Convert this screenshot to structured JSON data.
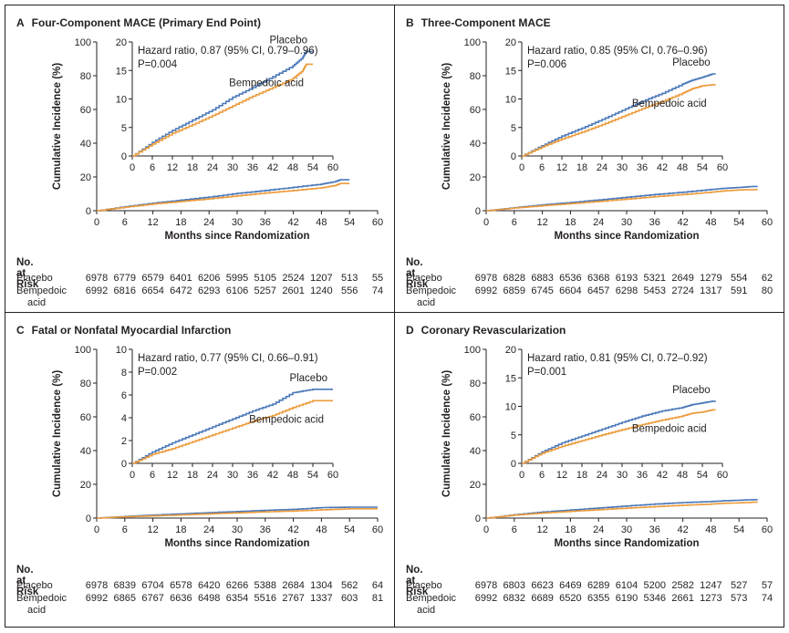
{
  "colors": {
    "placebo": "#4a78b9",
    "bempedoic": "#ec9b3b",
    "axis": "#231f20"
  },
  "panels": [
    {
      "letter": "A",
      "title": "Four-Component MACE (Primary End Point)",
      "hr": "Hazard ratio, 0.87 (95% CI, 0.79–0.96)",
      "p": "P=0.004",
      "risk_rows": {
        "placebo": [
          "6978",
          "6779",
          "6579",
          "6401",
          "6206",
          "5995",
          "5105",
          "2524",
          "1207",
          "513",
          "55"
        ],
        "bempedoic": [
          "6992",
          "6816",
          "6654",
          "6472",
          "6293",
          "6106",
          "5257",
          "2601",
          "1240",
          "556",
          "74"
        ]
      }
    },
    {
      "letter": "B",
      "title": "Three-Component MACE",
      "hr": "Hazard ratio, 0.85 (95% CI, 0.76–0.96)",
      "p": "P=0.006",
      "risk_rows": {
        "placebo": [
          "6978",
          "6828",
          "6883",
          "6536",
          "6368",
          "6193",
          "5321",
          "2649",
          "1279",
          "554",
          "62"
        ],
        "bempedoic": [
          "6992",
          "6859",
          "6745",
          "6604",
          "6457",
          "6298",
          "5453",
          "2724",
          "1317",
          "591",
          "80"
        ]
      }
    },
    {
      "letter": "C",
      "title": "Fatal or Nonfatal Myocardial Infarction",
      "hr": "Hazard ratio, 0.77 (95% CI, 0.66–0.91)",
      "p": "P=0.002",
      "risk_rows": {
        "placebo": [
          "6978",
          "6839",
          "6704",
          "6578",
          "6420",
          "6266",
          "5388",
          "2684",
          "1304",
          "562",
          "64"
        ],
        "bempedoic": [
          "6992",
          "6865",
          "6767",
          "6636",
          "6498",
          "6354",
          "5516",
          "2767",
          "1337",
          "603",
          "81"
        ]
      }
    },
    {
      "letter": "D",
      "title": "Coronary Revascularization",
      "hr": "Hazard ratio, 0.81 (95% CI, 0.72–0.92)",
      "p": "P=0.001",
      "risk_rows": {
        "placebo": [
          "6978",
          "6803",
          "6623",
          "6469",
          "6289",
          "6104",
          "5200",
          "2582",
          "1247",
          "527",
          "57"
        ],
        "bempedoic": [
          "6992",
          "6832",
          "6689",
          "6520",
          "6355",
          "6190",
          "5346",
          "2661",
          "1273",
          "573",
          "74"
        ]
      }
    }
  ],
  "labels": {
    "ylabel": "Cumulative Incidence (%)",
    "xlabel": "Months since Randomization",
    "risk_title": "No. at Risk",
    "placebo": "Placebo",
    "bempedoic_line1": "Bempedoic",
    "bempedoic_line2": "acid",
    "inset_placebo": "Placebo",
    "inset_bempedoic": "Bempedoic acid"
  },
  "chart_data": [
    {
      "type": "line",
      "title": "Four-Component MACE (Primary End Point)",
      "xlabel": "Months since Randomization",
      "ylabel": "Cumulative Incidence (%)",
      "xlim": [
        0,
        60
      ],
      "ylim": [
        0,
        100
      ],
      "xticks": [
        0,
        6,
        12,
        18,
        24,
        30,
        36,
        42,
        48,
        54,
        60
      ],
      "yticks": [
        0,
        20,
        40,
        60,
        80,
        100
      ],
      "inset": {
        "xlim": [
          0,
          60
        ],
        "ylim": [
          0,
          20
        ],
        "xticks": [
          0,
          6,
          12,
          18,
          24,
          30,
          36,
          42,
          48,
          54,
          60
        ],
        "yticks": [
          0,
          5,
          10,
          15,
          20
        ]
      },
      "series": [
        {
          "name": "Placebo",
          "x": [
            0,
            6,
            12,
            18,
            24,
            30,
            36,
            42,
            48,
            51,
            52,
            54
          ],
          "y": [
            0,
            2.4,
            4.5,
            6.3,
            8.1,
            10.3,
            12.0,
            13.9,
            15.8,
            17.3,
            18.3,
            18.3
          ]
        },
        {
          "name": "Bempedoic acid",
          "x": [
            0,
            6,
            12,
            18,
            24,
            30,
            36,
            42,
            48,
            51,
            52,
            54
          ],
          "y": [
            0,
            2.1,
            4.0,
            5.5,
            7.1,
            8.8,
            10.5,
            12.0,
            13.6,
            15.0,
            16.1,
            16.1
          ]
        }
      ]
    },
    {
      "type": "line",
      "title": "Three-Component MACE",
      "xlabel": "Months since Randomization",
      "ylabel": "Cumulative Incidence (%)",
      "xlim": [
        0,
        60
      ],
      "ylim": [
        0,
        100
      ],
      "xticks": [
        0,
        6,
        12,
        18,
        24,
        30,
        36,
        42,
        48,
        54,
        60
      ],
      "yticks": [
        0,
        20,
        40,
        60,
        80,
        100
      ],
      "inset": {
        "xlim": [
          0,
          60
        ],
        "ylim": [
          0,
          20
        ],
        "xticks": [
          0,
          6,
          12,
          18,
          24,
          30,
          36,
          42,
          48,
          54,
          60
        ],
        "yticks": [
          0,
          5,
          10,
          15,
          20
        ]
      },
      "series": [
        {
          "name": "Placebo",
          "x": [
            0,
            6,
            12,
            18,
            24,
            30,
            36,
            42,
            48,
            51,
            54,
            57,
            58
          ],
          "y": [
            0,
            1.8,
            3.5,
            4.9,
            6.4,
            8.0,
            9.6,
            11.0,
            12.6,
            13.3,
            13.8,
            14.4,
            14.4
          ]
        },
        {
          "name": "Bempedoic acid",
          "x": [
            0,
            6,
            12,
            18,
            24,
            30,
            36,
            42,
            48,
            51,
            54,
            57,
            58
          ],
          "y": [
            0,
            1.6,
            3.0,
            4.2,
            5.5,
            6.9,
            8.3,
            9.6,
            11.0,
            11.8,
            12.3,
            12.5,
            12.5
          ]
        }
      ]
    },
    {
      "type": "line",
      "title": "Fatal or Nonfatal Myocardial Infarction",
      "xlabel": "Months since Randomization",
      "ylabel": "Cumulative Incidence (%)",
      "xlim": [
        0,
        60
      ],
      "ylim": [
        0,
        100
      ],
      "xticks": [
        0,
        6,
        12,
        18,
        24,
        30,
        36,
        42,
        48,
        54,
        60
      ],
      "yticks": [
        0,
        20,
        40,
        60,
        80,
        100
      ],
      "inset": {
        "xlim": [
          0,
          60
        ],
        "ylim": [
          0,
          10
        ],
        "xticks": [
          0,
          6,
          12,
          18,
          24,
          30,
          36,
          42,
          48,
          54,
          60
        ],
        "yticks": [
          0,
          2,
          4,
          6,
          8,
          10
        ]
      },
      "series": [
        {
          "name": "Placebo",
          "x": [
            0,
            6,
            12,
            18,
            24,
            30,
            36,
            42,
            48,
            54,
            57,
            60
          ],
          "y": [
            0,
            1.0,
            1.8,
            2.5,
            3.2,
            3.9,
            4.6,
            5.2,
            6.2,
            6.5,
            6.5,
            6.5
          ]
        },
        {
          "name": "Bempedoic acid",
          "x": [
            0,
            6,
            12,
            18,
            24,
            30,
            36,
            42,
            48,
            54,
            57,
            60
          ],
          "y": [
            0,
            0.8,
            1.3,
            1.9,
            2.5,
            3.1,
            3.7,
            4.2,
            4.9,
            5.5,
            5.5,
            5.5
          ]
        }
      ]
    },
    {
      "type": "line",
      "title": "Coronary Revascularization",
      "xlabel": "Months since Randomization",
      "ylabel": "Cumulative Incidence (%)",
      "xlim": [
        0,
        60
      ],
      "ylim": [
        0,
        100
      ],
      "xticks": [
        0,
        6,
        12,
        18,
        24,
        30,
        36,
        42,
        48,
        54,
        60
      ],
      "yticks": [
        0,
        20,
        40,
        60,
        80,
        100
      ],
      "inset": {
        "xlim": [
          0,
          60
        ],
        "ylim": [
          0,
          20
        ],
        "xticks": [
          0,
          6,
          12,
          18,
          24,
          30,
          36,
          42,
          48,
          54,
          60
        ],
        "yticks": [
          0,
          5,
          10,
          15,
          20
        ]
      },
      "series": [
        {
          "name": "Placebo",
          "x": [
            0,
            6,
            12,
            18,
            24,
            30,
            36,
            42,
            48,
            51,
            54,
            57,
            58
          ],
          "y": [
            0,
            2.0,
            3.6,
            4.8,
            6.0,
            7.2,
            8.3,
            9.2,
            9.8,
            10.3,
            10.6,
            10.9,
            10.9
          ]
        },
        {
          "name": "Bempedoic acid",
          "x": [
            0,
            6,
            12,
            18,
            24,
            30,
            36,
            42,
            48,
            51,
            54,
            57,
            58
          ],
          "y": [
            0,
            1.8,
            3.0,
            4.0,
            5.0,
            5.9,
            6.8,
            7.6,
            8.3,
            8.8,
            9.0,
            9.4,
            9.4
          ]
        }
      ]
    }
  ]
}
